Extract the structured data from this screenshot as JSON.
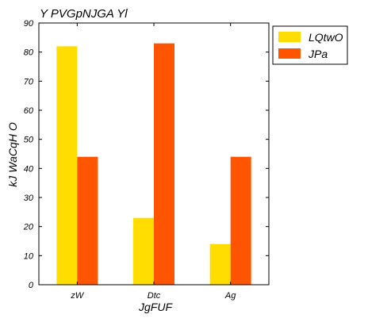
{
  "chart_data": {
    "type": "bar",
    "title": "Y PVGpNJGA Yl",
    "xlabel": "JgFUF",
    "ylabel": "kJ  WaCqH O",
    "categories": [
      "zW",
      "Dtc",
      "Ag"
    ],
    "series": [
      {
        "name": "LQtwO",
        "values": [
          82,
          23,
          14
        ],
        "color": "#ffdd00"
      },
      {
        "name": "JPa",
        "values": [
          44,
          83,
          44
        ],
        "color": "#ff5500"
      }
    ],
    "ylim": [
      0,
      90
    ],
    "yticks": [
      0,
      10,
      20,
      30,
      40,
      50,
      60,
      70,
      80,
      90
    ],
    "grid": false,
    "legend": "top-right outside"
  }
}
